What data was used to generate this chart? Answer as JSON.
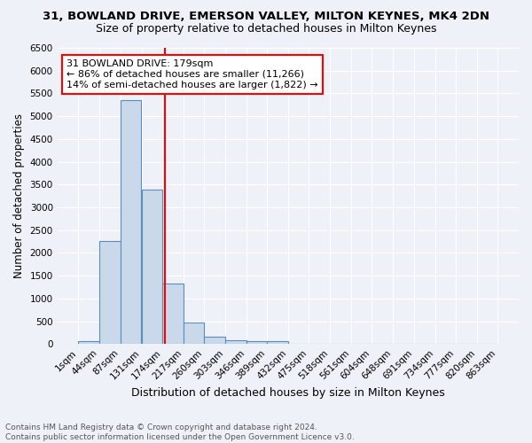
{
  "title": "31, BOWLAND DRIVE, EMERSON VALLEY, MILTON KEYNES, MK4 2DN",
  "subtitle": "Size of property relative to detached houses in Milton Keynes",
  "xlabel": "Distribution of detached houses by size in Milton Keynes",
  "ylabel": "Number of detached properties",
  "footnote1": "Contains HM Land Registry data © Crown copyright and database right 2024.",
  "footnote2": "Contains public sector information licensed under the Open Government Licence v3.0.",
  "bin_labels": [
    "1sqm",
    "44sqm",
    "87sqm",
    "131sqm",
    "174sqm",
    "217sqm",
    "260sqm",
    "303sqm",
    "346sqm",
    "389sqm",
    "432sqm",
    "475sqm",
    "518sqm",
    "561sqm",
    "604sqm",
    "648sqm",
    "691sqm",
    "734sqm",
    "777sqm",
    "820sqm",
    "863sqm"
  ],
  "bin_edges": [
    1,
    44,
    87,
    131,
    174,
    217,
    260,
    303,
    346,
    389,
    432,
    475,
    518,
    561,
    604,
    648,
    691,
    734,
    777,
    820,
    863
  ],
  "bar_heights": [
    70,
    2270,
    5350,
    3380,
    1330,
    470,
    170,
    75,
    65,
    65,
    0,
    0,
    0,
    0,
    0,
    0,
    0,
    0,
    0,
    0
  ],
  "bar_color": "#c9d9ea",
  "bar_edge_color": "#5b8db8",
  "vline_x": 179,
  "vline_color": "red",
  "ylim": [
    0,
    6500
  ],
  "yticks": [
    0,
    500,
    1000,
    1500,
    2000,
    2500,
    3000,
    3500,
    4000,
    4500,
    5000,
    5500,
    6000,
    6500
  ],
  "annotation_title": "31 BOWLAND DRIVE: 179sqm",
  "annotation_line1": "← 86% of detached houses are smaller (11,266)",
  "annotation_line2": "14% of semi-detached houses are larger (1,822) →",
  "bg_color": "#eef2f8",
  "plot_bg_color": "#eef2f8",
  "grid_color": "#ffffff",
  "title_fontsize": 9.5,
  "subtitle_fontsize": 9,
  "ylabel_fontsize": 8.5,
  "xlabel_fontsize": 9,
  "tick_fontsize": 7.5,
  "annot_fontsize": 8,
  "footnote_fontsize": 6.5
}
